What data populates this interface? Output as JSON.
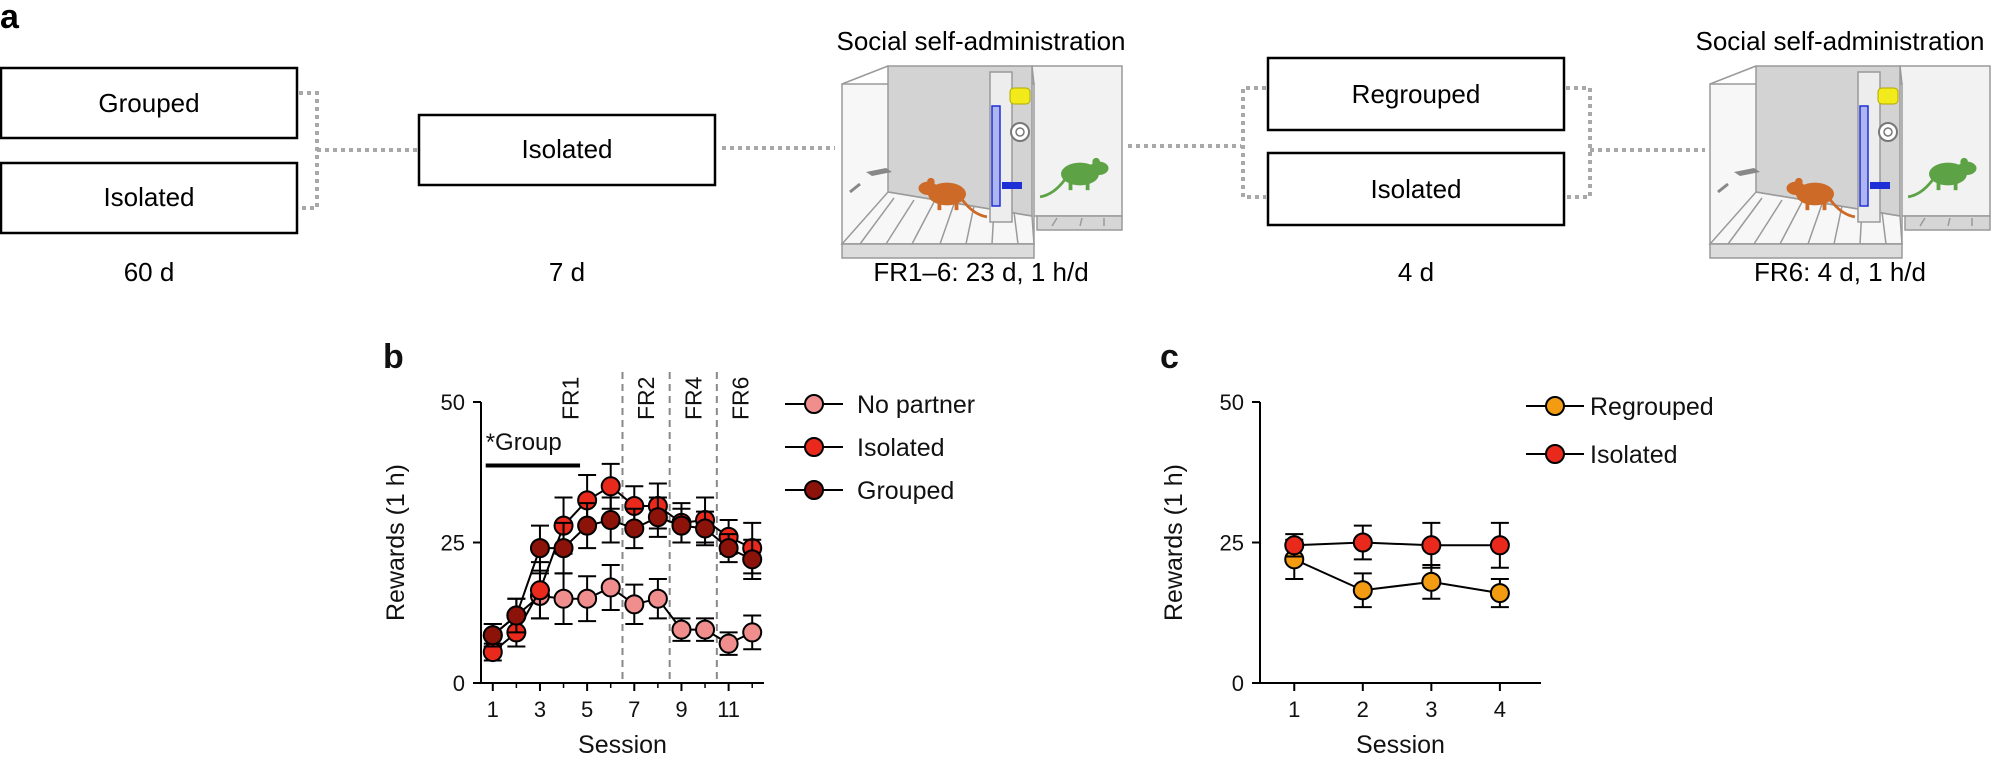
{
  "panel_a": {
    "letter": "a",
    "stages": {
      "grouped": "Grouped",
      "isolated_initial": "Isolated",
      "isolated_7d": "Isolated",
      "regrouped": "Regrouped",
      "isolated_4d": "Isolated"
    },
    "durations": {
      "d60": "60 d",
      "d7": "7 d",
      "fr16": "FR1–6: 23 d, 1 h/d",
      "d4": "4 d",
      "fr6": "FR6: 4 d, 1 h/d"
    },
    "chamber_title_1": "Social self-administration",
    "chamber_title_2": "Social self-administration",
    "colors": {
      "rat_self": "#cd6a28",
      "rat_partner": "#5ea246",
      "lever_blue": "#1f2fd6",
      "light_yellow": "#f2ea1a"
    }
  },
  "chart_data": [
    {
      "panel": "b",
      "type": "line",
      "xlabel": "Session",
      "ylabel": "Rewards (1 h)",
      "ylim": [
        0,
        50
      ],
      "yticks": [
        0,
        25,
        50
      ],
      "xlim": [
        0.5,
        12.5
      ],
      "xticks": [
        1,
        3,
        5,
        7,
        9,
        11
      ],
      "x": [
        1,
        2,
        3,
        4,
        5,
        6,
        7,
        8,
        9,
        10,
        11,
        12
      ],
      "series": [
        {
          "name": "No partner",
          "color": "#f08e8e",
          "values": [
            8.5,
            12,
            15.5,
            15,
            15,
            17,
            14,
            15,
            9.5,
            9.5,
            7,
            9
          ],
          "errors": [
            2,
            3,
            4,
            4.5,
            4,
            4,
            3.5,
            3.5,
            2,
            2,
            2,
            3
          ]
        },
        {
          "name": "Isolated",
          "color": "#e8291c",
          "values": [
            5.5,
            9,
            16.5,
            28,
            32.5,
            35,
            31.5,
            31.5,
            28.5,
            29,
            26,
            24
          ],
          "errors": [
            1.5,
            2.5,
            5,
            5,
            4.5,
            4,
            3.5,
            4,
            3.5,
            4,
            3,
            4.5
          ]
        },
        {
          "name": "Grouped",
          "color": "#8c1309",
          "values": [
            8.5,
            12,
            24,
            24,
            28,
            29,
            27.5,
            29.5,
            28,
            27.5,
            24,
            22
          ],
          "errors": [
            2,
            3,
            4,
            4.5,
            4,
            4,
            3.5,
            3.5,
            3,
            3,
            2.5,
            3.5
          ]
        }
      ],
      "phase_dividers": [
        6.5,
        8.5,
        10.5
      ],
      "phase_labels": [
        "FR1",
        "FR2",
        "FR4",
        "FR6"
      ],
      "annotation": "*Group",
      "legend": "top-right"
    },
    {
      "panel": "c",
      "type": "line",
      "xlabel": "Session",
      "ylabel": "Rewards (1 h)",
      "ylim": [
        0,
        50
      ],
      "yticks": [
        0,
        25,
        50
      ],
      "xlim": [
        0.5,
        4.6
      ],
      "xticks": [
        1,
        2,
        3,
        4
      ],
      "x": [
        1,
        2,
        3,
        4
      ],
      "series": [
        {
          "name": "Regrouped",
          "color": "#f39c12",
          "values": [
            22,
            16.5,
            18,
            16
          ],
          "errors": [
            3.5,
            3,
            3,
            2.5
          ]
        },
        {
          "name": "Isolated",
          "color": "#e8291c",
          "values": [
            24.5,
            25,
            24.5,
            24.5
          ],
          "errors": [
            2,
            3,
            4,
            4
          ]
        }
      ],
      "legend": "top-right"
    }
  ]
}
